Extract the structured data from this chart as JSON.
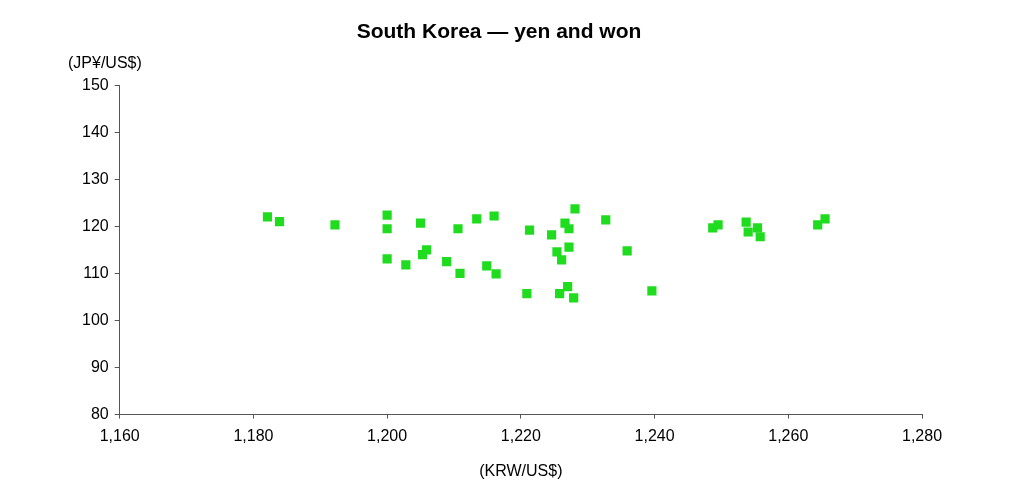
{
  "chart_data": {
    "type": "scatter",
    "title": "South Korea — yen and won",
    "xlabel": "(KRW/US$)",
    "ylabel": "(JP¥/US$)",
    "x": [
      1182.1,
      1183.9,
      1192.2,
      1200,
      1200,
      1200,
      1202.8,
      1205,
      1205.3,
      1205.9,
      1208.9,
      1210.6,
      1210.9,
      1213.4,
      1214.9,
      1216,
      1216.3,
      1221.3,
      1220.9,
      1224.6,
      1225.4,
      1225.8,
      1226.1,
      1226.6,
      1227,
      1227.2,
      1227.2,
      1227.9,
      1228.1,
      1232.7,
      1235.9,
      1239.6,
      1248.7,
      1249.5,
      1253.7,
      1254,
      1255.4,
      1255.8,
      1264.4,
      1265.5
    ],
    "values": [
      122,
      121,
      120.3,
      122.4,
      119.5,
      113.1,
      111.8,
      120.7,
      114,
      115,
      112.5,
      119.5,
      110,
      121.6,
      111.6,
      122.2,
      109.9,
      119.2,
      105.7,
      118.2,
      114.6,
      105.7,
      112.9,
      120.7,
      107.2,
      119.5,
      115.6,
      104.8,
      123.7,
      121.4,
      114.8,
      106.3,
      119.7,
      120.3,
      120.9,
      118.8,
      119.7,
      117.8,
      120.3,
      121.6
    ],
    "color": "#1fdc1f",
    "marker": "square",
    "grid": false,
    "legend": false,
    "xlim": [
      1160,
      1280
    ],
    "xticks": [
      {
        "value": 1160,
        "label": "1,160"
      },
      {
        "value": 1180,
        "label": "1,180"
      },
      {
        "value": 1200,
        "label": "1,200"
      },
      {
        "value": 1220,
        "label": "1,220"
      },
      {
        "value": 1240,
        "label": "1,240"
      },
      {
        "value": 1260,
        "label": "1,260"
      },
      {
        "value": 1280,
        "label": "1,280"
      }
    ],
    "ylim": [
      80,
      150
    ],
    "yticks": [
      80,
      90,
      100,
      110,
      120,
      130,
      140,
      150
    ]
  }
}
